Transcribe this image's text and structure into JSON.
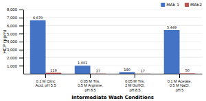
{
  "chart_data": {
    "type": "bar",
    "categories": [
      "0.1 M Citric\nAcid, pH 5.5",
      "0.05 M Tris,\n0.5 M Arginine,\npH 8.5",
      "0.05 M Tris,\n2 M GuHCl,\npH 8.5",
      "0.1 M Acetate,\n0.5 M NaCl,\npH 5"
    ],
    "series": [
      {
        "name": "MAb 1",
        "color": "#4472C4",
        "values": [
          6670,
          1001,
          190,
          5449
        ],
        "value_labels": [
          "6,670",
          "1,001",
          "190",
          "5,449"
        ]
      },
      {
        "name": "MAb2",
        "color": "#C0504D",
        "values": [
          119,
          27,
          17,
          50
        ]
      }
    ],
    "xlabel": "Intermediate Wash Conditions",
    "ylabel": "HCP (ppm)",
    "ylim": [
      0,
      8000
    ],
    "yticks": [
      {
        "value": 1000,
        "label": "1,000"
      },
      {
        "value": 2000,
        "label": "2,000"
      },
      {
        "value": 3000,
        "label": "3,000"
      },
      {
        "value": 4000,
        "label": "4,000"
      },
      {
        "value": 5000,
        "label": "5,000"
      },
      {
        "value": 6000,
        "label": "6,000"
      },
      {
        "value": 7000,
        "label": "7,000"
      },
      {
        "value": 8000,
        "label": "8,000"
      }
    ],
    "grid": true,
    "legend": "upper right",
    "data_labels": true
  }
}
